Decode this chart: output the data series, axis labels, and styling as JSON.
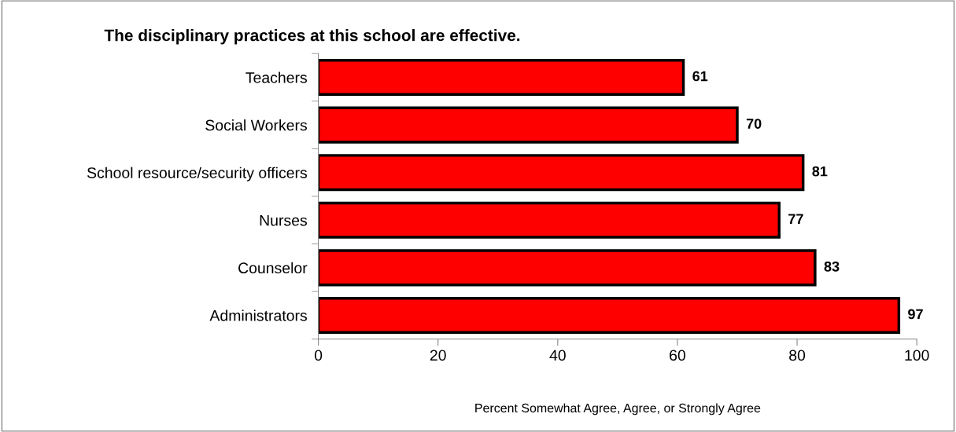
{
  "chart_data": {
    "type": "bar",
    "orientation": "horizontal",
    "title": "The disciplinary practices at this school are effective.",
    "xlabel": "Percent Somewhat Agree, Agree, or Strongly Agree",
    "categories": [
      "Teachers",
      "Social Workers",
      "School resource/security officers",
      "Nurses",
      "Counselor",
      "Administrators"
    ],
    "values": [
      61,
      70,
      81,
      77,
      83,
      97
    ],
    "color": "#ff0000",
    "xlim": [
      0,
      100
    ],
    "xticks": [
      0,
      20,
      40,
      60,
      80,
      100
    ],
    "grid": false,
    "legend": false,
    "data_labels": true
  }
}
